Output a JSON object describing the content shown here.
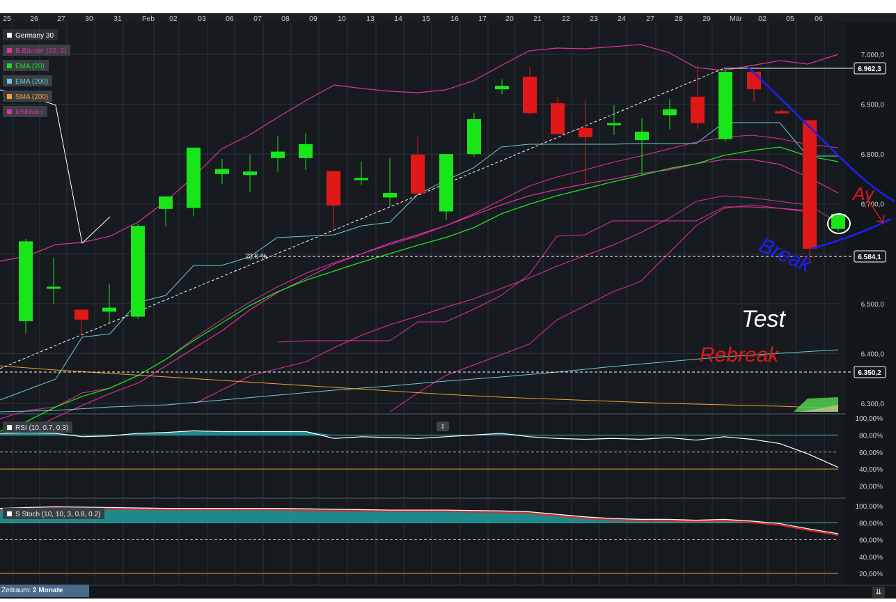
{
  "dates": [
    "25",
    "26",
    "27",
    "30",
    "31",
    "Feb",
    "02",
    "03",
    "06",
    "07",
    "08",
    "09",
    "10",
    "13",
    "14",
    "15",
    "16",
    "17",
    "20",
    "21",
    "22",
    "23",
    "24",
    "27",
    "28",
    "29",
    "Mär",
    "02",
    "05",
    "06"
  ],
  "legend": {
    "main": [
      {
        "name": "Germany 30",
        "color": "#ffffff"
      },
      {
        "name": "B Bänder (20, 2)",
        "color": "#e0309a"
      },
      {
        "name": "EMA (20)",
        "color": "#22dd22"
      },
      {
        "name": "EMA (200)",
        "color": "#6fc8d6"
      },
      {
        "name": "SMA (200)",
        "color": "#f0a030"
      },
      {
        "name": "IchiMoku",
        "color": "#e0309a"
      }
    ],
    "rsi": "RSI (10, 0.7, 0.3)",
    "stoch": "S Stoch (10, 10, 3, 0.8, 0.2)"
  },
  "price_axis": [
    "7.000,0",
    "6.900,0",
    "6.800,0",
    "6.700,0",
    "6.600,0",
    "6.500,0",
    "6.400,0",
    "6.300,0"
  ],
  "price_tags": [
    "6.962,3",
    "6.584,1",
    "6.350,2"
  ],
  "fib_label": "23.6 %",
  "rsi_axis": [
    "100,00%",
    "80,00%",
    "60,00%",
    "40,00%",
    "20,00%"
  ],
  "stoch_axis": [
    "100,00%",
    "80,00%",
    "60,00%",
    "40,00%",
    "20,00%"
  ],
  "annotations": {
    "break": "Break",
    "test": "Test",
    "rebreak": "Rebreak",
    "ay": "Ay"
  },
  "footer": {
    "label": "Zeitraum:",
    "value": "2 Monate"
  },
  "colors": {
    "bull": "#19e619",
    "bear": "#e01818",
    "bg": "#13171c",
    "grid": "#2c333a",
    "rsi_fill": "#1f9d9d"
  },
  "chart_data": {
    "type": "candlestick",
    "title": "Germany 30",
    "ylim": [
      6280,
      7040
    ],
    "candles": [
      {
        "x": "26",
        "open": 6465,
        "high": 6630,
        "low": 6440,
        "close": 6625
      },
      {
        "x": "27",
        "open": 6532,
        "high": 6592,
        "low": 6500,
        "close": 6534
      },
      {
        "x": "30",
        "open": 6488,
        "high": 6488,
        "low": 6440,
        "close": 6468
      },
      {
        "x": "31",
        "open": 6484,
        "high": 6540,
        "low": 6460,
        "close": 6492
      },
      {
        "x": "Feb",
        "open": 6474,
        "high": 6660,
        "low": 6470,
        "close": 6656
      },
      {
        "x": "02",
        "open": 6690,
        "high": 6715,
        "low": 6655,
        "close": 6715
      },
      {
        "x": "03",
        "open": 6692,
        "high": 6813,
        "low": 6675,
        "close": 6813
      },
      {
        "x": "06",
        "open": 6760,
        "high": 6790,
        "low": 6740,
        "close": 6770
      },
      {
        "x": "07",
        "open": 6758,
        "high": 6799,
        "low": 6724,
        "close": 6765
      },
      {
        "x": "08",
        "open": 6792,
        "high": 6836,
        "low": 6765,
        "close": 6805
      },
      {
        "x": "09",
        "open": 6792,
        "high": 6842,
        "low": 6768,
        "close": 6820
      },
      {
        "x": "10",
        "open": 6766,
        "high": 6766,
        "low": 6648,
        "close": 6697
      },
      {
        "x": "13",
        "open": 6750,
        "high": 6785,
        "low": 6738,
        "close": 6752
      },
      {
        "x": "14",
        "open": 6713,
        "high": 6792,
        "low": 6695,
        "close": 6722
      },
      {
        "x": "15",
        "open": 6799,
        "high": 6835,
        "low": 6721,
        "close": 6721
      },
      {
        "x": "16",
        "open": 6685,
        "high": 6800,
        "low": 6668,
        "close": 6800
      },
      {
        "x": "17",
        "open": 6800,
        "high": 6883,
        "low": 6795,
        "close": 6870
      },
      {
        "x": "20",
        "open": 6930,
        "high": 6950,
        "low": 6920,
        "close": 6937
      },
      {
        "x": "21",
        "open": 6955,
        "high": 6975,
        "low": 6879,
        "close": 6882
      },
      {
        "x": "22",
        "open": 6902,
        "high": 6915,
        "low": 6842,
        "close": 6840
      },
      {
        "x": "23",
        "open": 6852,
        "high": 6908,
        "low": 6744,
        "close": 6834
      },
      {
        "x": "24",
        "open": 6860,
        "high": 6898,
        "low": 6838,
        "close": 6862
      },
      {
        "x": "27",
        "open": 6828,
        "high": 6872,
        "low": 6758,
        "close": 6845
      },
      {
        "x": "28",
        "open": 6878,
        "high": 6910,
        "low": 6850,
        "close": 6890
      },
      {
        "x": "29",
        "open": 6915,
        "high": 6977,
        "low": 6850,
        "close": 6862
      },
      {
        "x": "Mär",
        "open": 6830,
        "high": 6970,
        "low": 6825,
        "close": 6965
      },
      {
        "x": "02",
        "open": 6965,
        "high": 6965,
        "low": 6905,
        "close": 6930
      },
      {
        "x": "05",
        "open": 6886,
        "high": 6890,
        "low": 6880,
        "close": 6885
      },
      {
        "x": "06",
        "open": 6868,
        "high": 6868,
        "low": 6580,
        "close": 6610
      },
      {
        "x": "07",
        "open": 6650,
        "high": 6680,
        "low": 6645,
        "close": 6680
      }
    ]
  }
}
